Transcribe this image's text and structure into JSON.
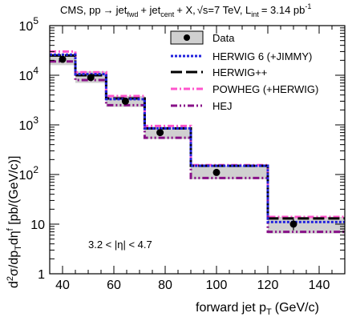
{
  "chart_data": {
    "type": "step",
    "header": {
      "prefix": "CMS, pp",
      "arrow": "→",
      "jet1": "jet",
      "jet1_sub": "fwd",
      "plus1": "+ jet",
      "jet2_sub": "cent",
      "plus2": "+ X,",
      "sqrt": "√",
      "energy": "s=7 TeV, L",
      "lumi_sub": "int",
      "lumi": "= 3.14 pb",
      "lumi_sup": "-1"
    },
    "xlabel": "forward jet p",
    "xlabel_sub": "T",
    "xlabel_unit": "(GeV/c)",
    "ylabel": "d²σ/dp_T dη^f [pb/(GeV/c)]",
    "ylabel_parts": {
      "d": "d",
      "sup2": "2",
      "sigma": "σ/dp",
      "subT": "T",
      "deta": "dη",
      "supf": "f",
      "unit": " [pb/(GeV/c)]"
    },
    "xlim": [
      35,
      150
    ],
    "ylim": [
      1,
      100000
    ],
    "yscale": "log",
    "x_ticks": [
      40,
      60,
      80,
      100,
      120,
      140
    ],
    "x_tick_labels": [
      "40",
      "60",
      "80",
      "100",
      "120",
      "140"
    ],
    "y_ticks": [
      1,
      10,
      100,
      1000,
      10000,
      100000
    ],
    "y_tick_labels": [
      {
        "base": "1",
        "exp": ""
      },
      {
        "base": "10",
        "exp": ""
      },
      {
        "base": "10",
        "exp": "2"
      },
      {
        "base": "10",
        "exp": "3"
      },
      {
        "base": "10",
        "exp": "4"
      },
      {
        "base": "10",
        "exp": "5"
      }
    ],
    "bins": [
      [
        35,
        45
      ],
      [
        45,
        57
      ],
      [
        57,
        72
      ],
      [
        72,
        90
      ],
      [
        90,
        120
      ],
      [
        120,
        150
      ]
    ],
    "data": {
      "name": "Data",
      "x": [
        40,
        51,
        64.5,
        78,
        100,
        130
      ],
      "y": [
        21000,
        9000,
        3000,
        700,
        110,
        10
      ],
      "yerr": [
        1500,
        600,
        200,
        60,
        12,
        2.5
      ]
    },
    "uncertainty_band": {
      "low": [
        16000,
        7000,
        2300,
        520,
        80,
        6.5
      ],
      "high": [
        27000,
        12000,
        3800,
        900,
        150,
        14
      ]
    },
    "series": [
      {
        "name": "HERWIG 6 (+JIMMY)",
        "values": [
          26000,
          10500,
          3300,
          850,
          150,
          11
        ],
        "color": "#2222dd",
        "style": "dotted"
      },
      {
        "name": "HERWIG++",
        "values": [
          25000,
          10000,
          3400,
          850,
          150,
          13
        ],
        "color": "#000000",
        "style": "longdash"
      },
      {
        "name": "POWHEG (+HERWIG)",
        "values": [
          30000,
          11500,
          3800,
          950,
          155,
          14
        ],
        "color": "#ff55cc",
        "style": "dashdot"
      },
      {
        "name": "HEJ",
        "values": [
          19000,
          8000,
          2500,
          550,
          85,
          7
        ],
        "color": "#881188",
        "style": "dashdotdot"
      }
    ],
    "annotation": "3.2 < |η| < 4.7",
    "legend_placement": "top-right",
    "grid": false
  }
}
